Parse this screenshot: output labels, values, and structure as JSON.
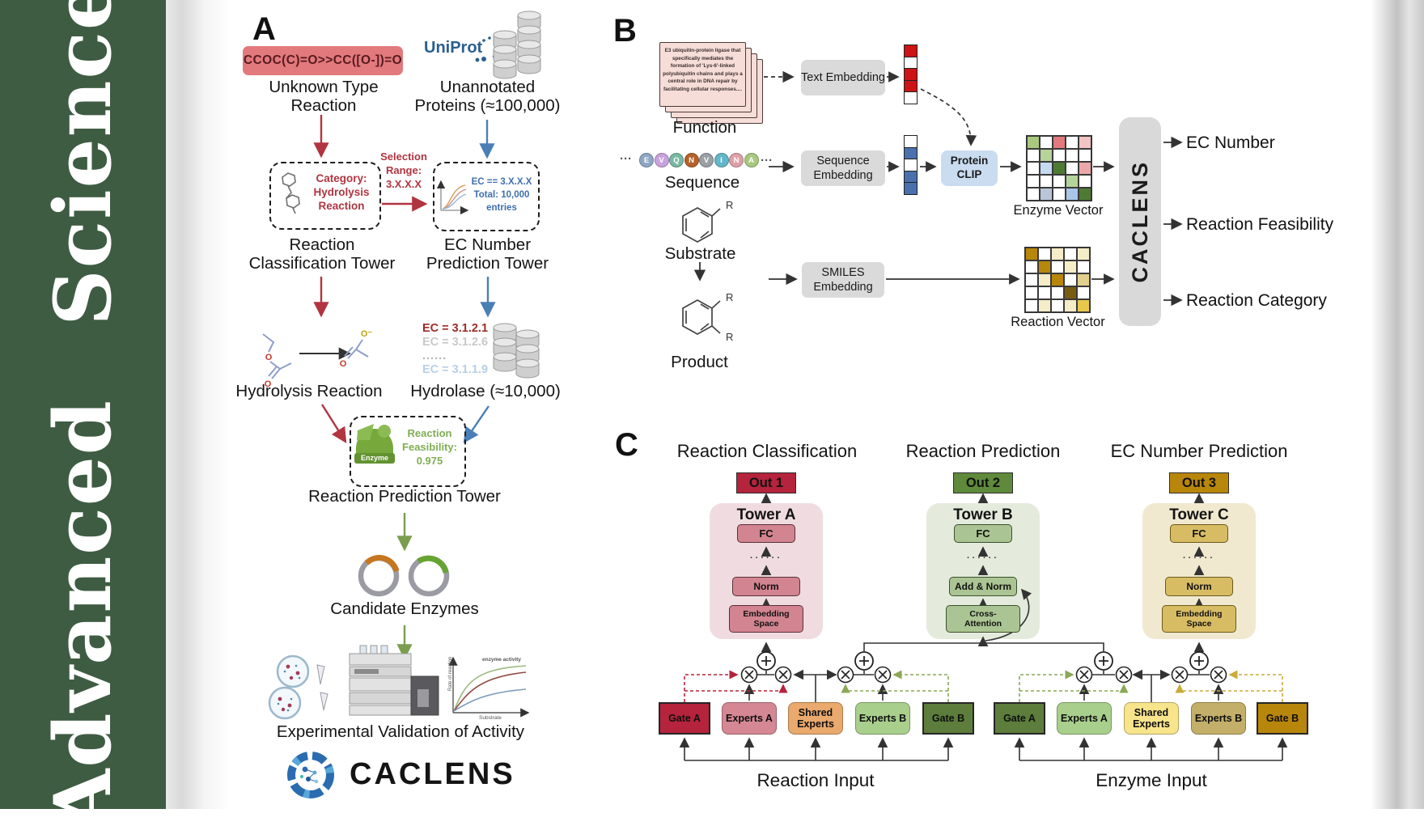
{
  "journal": {
    "name": "Advanced Science"
  },
  "atom_labels": {
    "oxygen": "O",
    "oxygen_anion": "O⁻",
    "substituent": "R"
  },
  "colors": {
    "spine_green": "#3e5c42",
    "accent_red": "#b03540",
    "accent_blue": "#4a7fb5",
    "accent_green": "#7a9e4e",
    "crimson": "#b5233c",
    "moe_green": "#5c7d3b",
    "gold": "#b8860b"
  },
  "panel_a": {
    "label": "A",
    "smiles": "CCOC(C)=O>>CC([O-])=O",
    "unknown_type_label": "Unknown Type Reaction",
    "uniprot_label": "UniProt",
    "unannotated_label": "Unannotated Proteins (≈100,000)",
    "category_box_text": "Category: Hydrolysis Reaction",
    "selection_text": "Selection Range: 3.X.X.X",
    "ec_box_text": "EC == 3.X.X.X Total: 10,000 entries",
    "classification_tower_label": "Reaction Classification Tower",
    "ec_tower_label": "EC Number Prediction Tower",
    "hydrolysis_label": "Hydrolysis Reaction",
    "ec_list": [
      {
        "text": "EC = 3.1.2.1",
        "color": "#9e2b25"
      },
      {
        "text": "EC = 3.1.2.6",
        "color": "#c9c9c9"
      },
      {
        "text": "......",
        "color": "#b5b5b5"
      },
      {
        "text": "EC = 3.1.1.9",
        "color": "#b8cfe6"
      }
    ],
    "hydrolase_label": "Hydrolase (≈10,000)",
    "enzyme_badge": "Enzyme",
    "feasibility_text": "Reaction Feasibility: 0.975",
    "prediction_tower_label": "Reaction Prediction Tower",
    "candidate_label": "Candidate Enzymes",
    "activity_plot": {
      "curve_label": "enzyme activity",
      "ylabel": "Rate of reaction",
      "xlabel": "Substrate"
    },
    "validation_label": "Experimental Validation of Activity",
    "brand": "CACLENS"
  },
  "panel_b": {
    "label": "B",
    "function_card_text": "E3 ubiquitin-protein ligase that specifically mediates the formation of 'Lys-6'-linked polyubiquitin chains and plays a central role in DNA repair by facilitating cellular responses....",
    "function_label": "Function",
    "ellipsis": "···",
    "residues": [
      {
        "letter": "E",
        "color": "#8fa6c4"
      },
      {
        "letter": "V",
        "color": "#c9a3dd"
      },
      {
        "letter": "Q",
        "color": "#79b9a4"
      },
      {
        "letter": "N",
        "color": "#b5622a"
      },
      {
        "letter": "V",
        "color": "#9aa0a6"
      },
      {
        "letter": "I",
        "color": "#62b8c9"
      },
      {
        "letter": "N",
        "color": "#e0a0a8"
      },
      {
        "letter": "A",
        "color": "#a9c97e"
      }
    ],
    "sequence_label": "Sequence",
    "substrate_label": "Substrate",
    "product_label": "Product",
    "text_embedding_label": "Text Embedding",
    "sequence_embedding_label": "Sequence Embedding",
    "smiles_embedding_label": "SMILES Embedding",
    "protein_clip_label": "Protein CLIP",
    "text_vector_cells": [
      "#cc1315",
      "#ffffff",
      "#cc1315",
      "#cc1315",
      "#ffffff"
    ],
    "sequence_vector_cells": [
      "#ffffff",
      "#4a70ad",
      "#ffffff",
      "#4a70ad",
      "#4a70ad"
    ],
    "enzyme_matrix": [
      [
        "#a9c97e",
        "#ffffff",
        "#e07a7c",
        "#ffffff",
        "#f2c4c4"
      ],
      [
        "#ffffff",
        "#b5d39b",
        "#ffffff",
        "#ffffff",
        "#ffffff"
      ],
      [
        "#ffffff",
        "#c6d9f0",
        "#4f7a33",
        "#ffffff",
        "#eba8a8"
      ],
      [
        "#ffffff",
        "#ffffff",
        "#ffffff",
        "#b5d39b",
        "#ffffff"
      ],
      [
        "#ffffff",
        "#b9c6d9",
        "#ffffff",
        "#a8c6e8",
        "#4f7a33"
      ]
    ],
    "reaction_matrix": [
      [
        "#b8860b",
        "#ffffff",
        "#f5ecc8",
        "#ffffff",
        "#f5ecc8"
      ],
      [
        "#ffffff",
        "#b8860b",
        "#ffffff",
        "#f5ecc8",
        "#ffffff"
      ],
      [
        "#ffffff",
        "#f5ecc8",
        "#b8860b",
        "#ffffff",
        "#e3cf8e"
      ],
      [
        "#ffffff",
        "#ffffff",
        "#ffffff",
        "#7a5c10",
        "#ffffff"
      ],
      [
        "#ffffff",
        "#f5ecc8",
        "#ffffff",
        "#f5ecc8",
        "#e8c84a"
      ]
    ],
    "enzyme_vector_label": "Enzyme Vector",
    "reaction_vector_label": "Reaction Vector",
    "caclens_label": "CACLENS",
    "outputs": [
      "EC Number",
      "Reaction Feasibility",
      "Reaction Category"
    ]
  },
  "panel_c": {
    "label": "C",
    "columns": [
      {
        "title": "Reaction Classification",
        "out_label": "Out 1",
        "out_bg": "#b5233c",
        "panel_bg": "#f0dce0",
        "box_bg": "#d28490",
        "tower": "Tower A",
        "fc": "FC",
        "dots": "······",
        "mid": "Norm",
        "bottom": "Embedding Space"
      },
      {
        "title": "Reaction Prediction",
        "out_label": "Out 2",
        "out_bg": "#5f8a3c",
        "panel_bg": "#e4ebdc",
        "box_bg": "#abc493",
        "tower": "Tower B",
        "fc": "FC",
        "dots": "······",
        "mid": "Add & Norm",
        "bottom": "Cross- Attention"
      },
      {
        "title": "EC Number Prediction",
        "out_label": "Out 3",
        "out_bg": "#b8860b",
        "panel_bg": "#f1e9cf",
        "box_bg": "#d8bc64",
        "tower": "Tower C",
        "fc": "FC",
        "dots": "······",
        "mid": "Norm",
        "bottom": "Embedding Space"
      }
    ],
    "groups": [
      {
        "input_label": "Reaction Input",
        "boxes": [
          {
            "label": "Gate A",
            "bg": "#b5233c"
          },
          {
            "label": "Experts A",
            "bg": "#d58794"
          },
          {
            "label": "Shared Experts",
            "bg": "#eaa96d"
          },
          {
            "label": "Experts B",
            "bg": "#a9cf8d"
          },
          {
            "label": "Gate B",
            "bg": "#5c7d3b"
          }
        ]
      },
      {
        "input_label": "Enzyme Input",
        "boxes": [
          {
            "label": "Gate A",
            "bg": "#5c7d3b"
          },
          {
            "label": "Experts A",
            "bg": "#a9cf8d"
          },
          {
            "label": "Shared Experts",
            "bg": "#f7e48b"
          },
          {
            "label": "Experts B",
            "bg": "#c3af69"
          },
          {
            "label": "Gate B",
            "bg": "#b8860b"
          }
        ]
      }
    ]
  }
}
